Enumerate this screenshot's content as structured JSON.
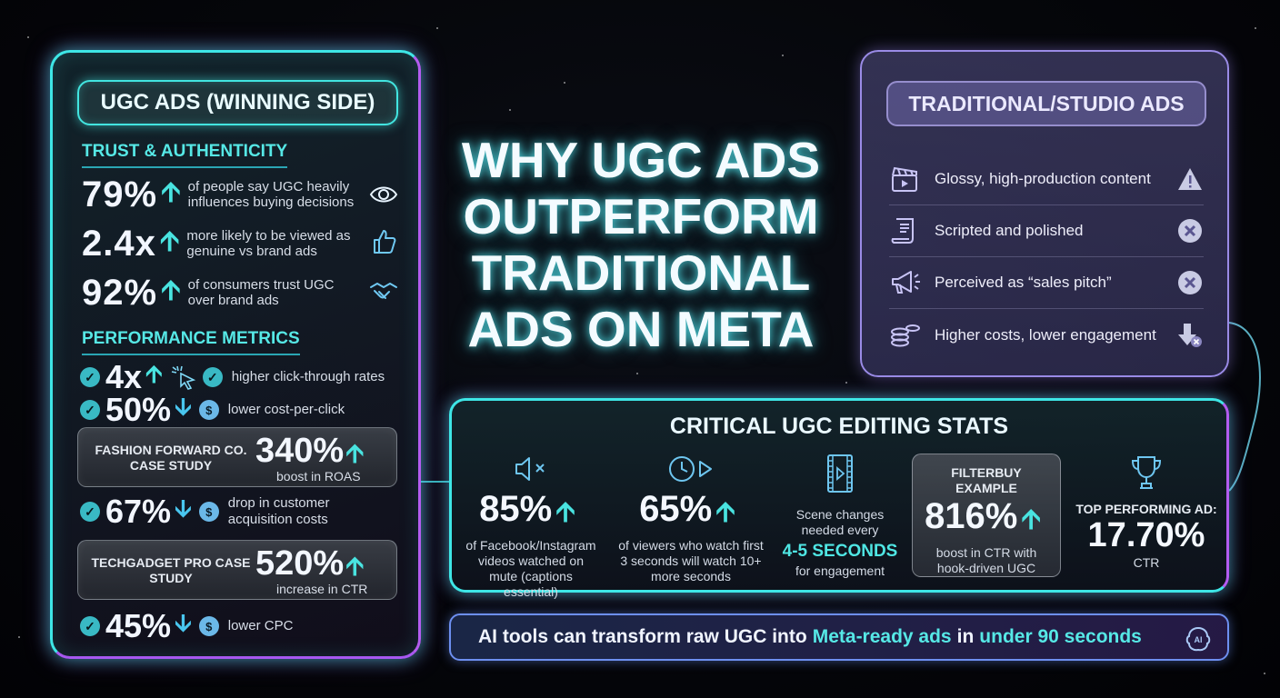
{
  "headline": [
    "WHY UGC ADS",
    "OUTPERFORM",
    "TRADITIONAL",
    "ADS ON META"
  ],
  "colors": {
    "accent_cyan": "#3ee6e6",
    "accent_purple": "#b45cf0",
    "trad_panel": "#6e68aa"
  },
  "ugc_panel": {
    "title": "UGC ADS (WINNING SIDE)",
    "trust_heading": "TRUST & AUTHENTICITY",
    "trust_stats": [
      {
        "value": "79%",
        "text": "of people say UGC heavily influences buying decisions",
        "icon": "eye-icon"
      },
      {
        "value": "2.4x",
        "text": "more likely to be viewed as genuine vs brand ads",
        "icon": "thumbs-up-icon"
      },
      {
        "value": "92%",
        "text": "of consumers trust UGC over brand ads",
        "icon": "handshake-icon"
      }
    ],
    "performance_heading": "PERFORMANCE METRICS",
    "metric_ctr": {
      "value": "4x",
      "text": "higher click-through rates"
    },
    "metric_cpc": {
      "value": "50%",
      "text": "lower cost-per-click"
    },
    "case_fashion": {
      "name": "FASHION FORWARD CO. CASE STUDY",
      "value": "340%",
      "text": "boost in ROAS"
    },
    "metric_cac": {
      "value": "67%",
      "text": "drop in customer acquisition costs"
    },
    "case_techgadget": {
      "name": "TECHGADGET PRO CASE STUDY",
      "value": "520%",
      "text": "increase in CTR"
    },
    "metric_cpc2": {
      "value": "45%",
      "text": "lower CPC"
    }
  },
  "traditional_panel": {
    "title": "TRADITIONAL/STUDIO ADS",
    "items": [
      {
        "text": "Glossy, high-production content",
        "icon": "clapperboard-icon",
        "status": "warning-icon"
      },
      {
        "text": "Scripted and polished",
        "icon": "script-icon",
        "status": "x-icon"
      },
      {
        "text": "Perceived as “sales pitch”",
        "icon": "megaphone-icon",
        "status": "x-icon"
      },
      {
        "text": "Higher costs, lower engagement",
        "icon": "coins-icon",
        "status": "down-x-icon"
      }
    ]
  },
  "critical_stats": {
    "title": "CRITICAL UGC EDITING STATS",
    "mute": {
      "value": "85%",
      "text": "of Facebook/Instagram videos watched on mute (captions essential)",
      "icon": "muted-speaker-icon"
    },
    "watch": {
      "value": "65%",
      "text": "of viewers who watch first 3 seconds will watch 10+ more seconds",
      "icon": "clock-play-icon"
    },
    "scene": {
      "pre": "Scene changes needed every",
      "accent": "4-5 SECONDS",
      "post": "for engagement",
      "icon": "film-icon"
    },
    "example": {
      "label": "FILTERBUY EXAMPLE",
      "value": "816%",
      "text": "boost in CTR with hook-driven UGC"
    },
    "top": {
      "label": "TOP PERFORMING AD:",
      "value": "17.70%",
      "text": "CTR",
      "icon": "trophy-icon"
    }
  },
  "banner": {
    "part1": "AI tools can transform raw UGC into",
    "hl1": "Meta-ready ads",
    "part2": "in",
    "hl2": "under 90 seconds",
    "icon": "ai-brain-icon"
  }
}
